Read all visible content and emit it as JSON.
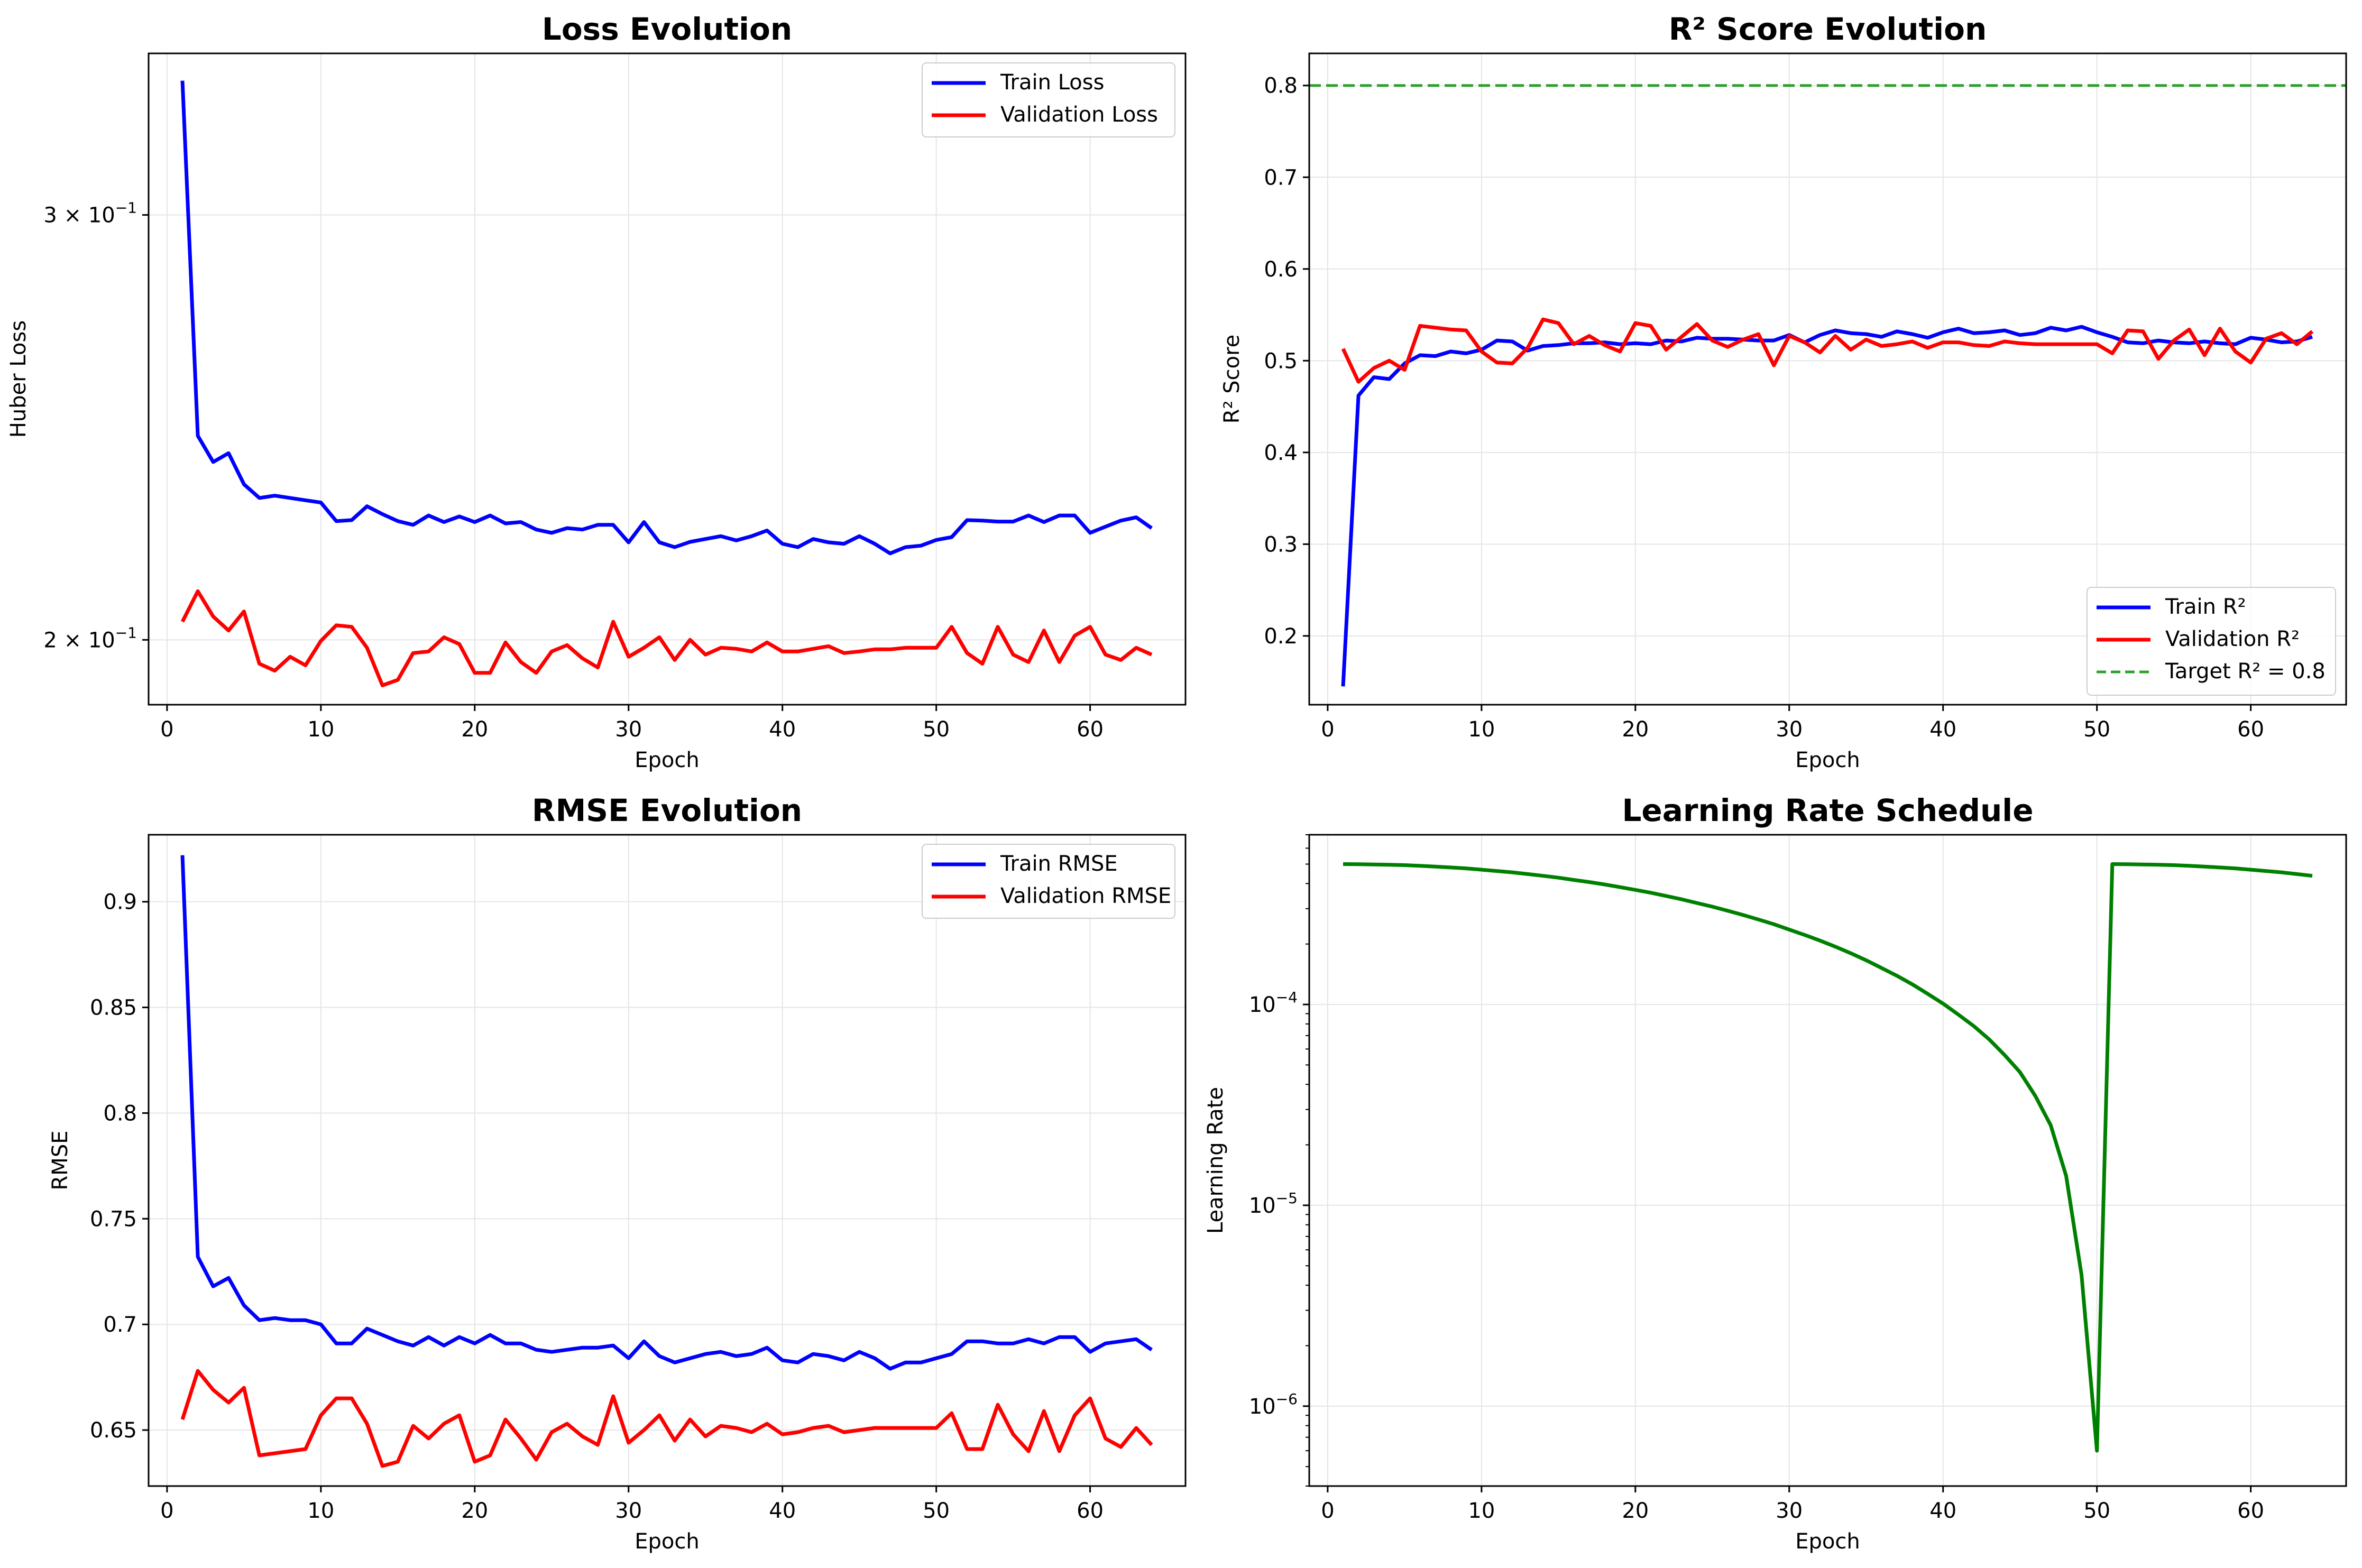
{
  "colors": {
    "train": "#0000ff",
    "validation": "#ff0000",
    "target": "#2ca02c",
    "lr": "#008000",
    "grid": "#e5e5e5",
    "legend_border": "#cccccc"
  },
  "chart_data": [
    {
      "type": "line",
      "title": "Loss Evolution",
      "xlabel": "Epoch",
      "ylabel": "Huber Loss",
      "yscale": "log",
      "xlim": [
        -1.2,
        66.2
      ],
      "ylim": [
        0.188,
        0.35
      ],
      "xticks": [
        0,
        10,
        20,
        30,
        40,
        50,
        60
      ],
      "yticks": [
        {
          "value": 0.3,
          "mantissa": "3",
          "exp": "−1"
        },
        {
          "value": 0.2,
          "mantissa": "2",
          "exp": "−1"
        }
      ],
      "grid": true,
      "legend_position": "top-right",
      "series": [
        {
          "name": "Train Loss",
          "color": "#0000ff",
          "x": [
            1,
            2,
            3,
            4,
            5,
            6,
            7,
            8,
            9,
            10,
            11,
            12,
            13,
            14,
            15,
            16,
            17,
            18,
            19,
            20,
            21,
            22,
            23,
            24,
            25,
            26,
            27,
            28,
            29,
            30,
            31,
            32,
            33,
            34,
            35,
            36,
            37,
            38,
            39,
            40,
            41,
            42,
            43,
            44,
            45,
            46,
            47,
            48,
            49,
            50,
            51,
            52,
            53,
            54,
            55,
            56,
            57,
            58,
            59,
            60,
            61,
            62,
            63,
            64
          ],
          "values": [
            0.341,
            0.243,
            0.237,
            0.239,
            0.232,
            0.229,
            0.2295,
            0.229,
            0.2285,
            0.228,
            0.224,
            0.2242,
            0.2272,
            0.2255,
            0.224,
            0.2232,
            0.2252,
            0.2238,
            0.225,
            0.2238,
            0.2252,
            0.2235,
            0.2238,
            0.2222,
            0.2215,
            0.2225,
            0.2222,
            0.2232,
            0.2232,
            0.2195,
            0.2238,
            0.2195,
            0.2185,
            0.2196,
            0.2202,
            0.2208,
            0.2199,
            0.2208,
            0.222,
            0.2192,
            0.2185,
            0.2202,
            0.2195,
            0.2192,
            0.2208,
            0.2192,
            0.2172,
            0.2185,
            0.2188,
            0.22,
            0.2206,
            0.2242,
            0.2241,
            0.2239,
            0.2239,
            0.2252,
            0.2238,
            0.2252,
            0.2252,
            0.2215,
            0.2228,
            0.2241,
            0.2248,
            0.2225
          ]
        },
        {
          "name": "Validation Loss",
          "color": "#ff0000",
          "x": [
            1,
            2,
            3,
            4,
            5,
            6,
            7,
            8,
            9,
            10,
            11,
            12,
            13,
            14,
            15,
            16,
            17,
            18,
            19,
            20,
            21,
            22,
            23,
            24,
            25,
            26,
            27,
            28,
            29,
            30,
            31,
            32,
            33,
            34,
            35,
            36,
            37,
            38,
            39,
            40,
            41,
            42,
            43,
            44,
            45,
            46,
            47,
            48,
            49,
            50,
            51,
            52,
            53,
            54,
            55,
            56,
            57,
            58,
            59,
            60,
            61,
            62,
            63,
            64
          ],
          "values": [
            0.2035,
            0.2095,
            0.2045,
            0.2018,
            0.2055,
            0.1955,
            0.1942,
            0.1968,
            0.1952,
            0.1998,
            0.2028,
            0.2025,
            0.1985,
            0.1915,
            0.1925,
            0.1975,
            0.1978,
            0.2005,
            0.1992,
            0.1938,
            0.1938,
            0.1995,
            0.1958,
            0.1938,
            0.1978,
            0.199,
            0.1965,
            0.1948,
            0.2035,
            0.1968,
            0.1985,
            0.2005,
            0.1962,
            0.2,
            0.1972,
            0.1985,
            0.1983,
            0.1978,
            0.1995,
            0.1978,
            0.1978,
            0.1983,
            0.1988,
            0.1975,
            0.1978,
            0.1982,
            0.1982,
            0.1985,
            0.1985,
            0.1985,
            0.2025,
            0.1975,
            0.1955,
            0.2025,
            0.1972,
            0.1958,
            0.2018,
            0.1958,
            0.2008,
            0.2025,
            0.1972,
            0.1962,
            0.1985,
            0.1972
          ]
        }
      ]
    },
    {
      "type": "line",
      "title": "R² Score Evolution",
      "xlabel": "Epoch",
      "ylabel": "R² Score",
      "yscale": "linear",
      "xlim": [
        -1.2,
        66.2
      ],
      "ylim": [
        0.125,
        0.835
      ],
      "xticks": [
        0,
        10,
        20,
        30,
        40,
        50,
        60
      ],
      "yticks": [
        0.2,
        0.3,
        0.4,
        0.5,
        0.6,
        0.7,
        0.8
      ],
      "grid": true,
      "legend_position": "bottom-right",
      "series": [
        {
          "name": "Train R²",
          "color": "#0000ff",
          "x": [
            1,
            2,
            3,
            4,
            5,
            6,
            7,
            8,
            9,
            10,
            11,
            12,
            13,
            14,
            15,
            16,
            17,
            18,
            19,
            20,
            21,
            22,
            23,
            24,
            25,
            26,
            27,
            28,
            29,
            30,
            31,
            32,
            33,
            34,
            35,
            36,
            37,
            38,
            39,
            40,
            41,
            42,
            43,
            44,
            45,
            46,
            47,
            48,
            49,
            50,
            51,
            52,
            53,
            54,
            55,
            56,
            57,
            58,
            59,
            60,
            61,
            62,
            63,
            64
          ],
          "values": [
            0.145,
            0.462,
            0.482,
            0.48,
            0.497,
            0.506,
            0.505,
            0.51,
            0.508,
            0.512,
            0.522,
            0.521,
            0.511,
            0.516,
            0.517,
            0.519,
            0.519,
            0.52,
            0.518,
            0.519,
            0.518,
            0.522,
            0.521,
            0.525,
            0.524,
            0.524,
            0.523,
            0.522,
            0.522,
            0.528,
            0.52,
            0.528,
            0.533,
            0.53,
            0.529,
            0.526,
            0.532,
            0.529,
            0.525,
            0.531,
            0.535,
            0.53,
            0.531,
            0.533,
            0.528,
            0.53,
            0.536,
            0.533,
            0.537,
            0.531,
            0.526,
            0.52,
            0.519,
            0.522,
            0.52,
            0.519,
            0.521,
            0.519,
            0.518,
            0.525,
            0.523,
            0.52,
            0.521,
            0.526
          ]
        },
        {
          "name": "Validation R²",
          "color": "#ff0000",
          "x": [
            1,
            2,
            3,
            4,
            5,
            6,
            7,
            8,
            9,
            10,
            11,
            12,
            13,
            14,
            15,
            16,
            17,
            18,
            19,
            20,
            21,
            22,
            23,
            24,
            25,
            26,
            27,
            28,
            29,
            30,
            31,
            32,
            33,
            34,
            35,
            36,
            37,
            38,
            39,
            40,
            41,
            42,
            43,
            44,
            45,
            46,
            47,
            48,
            49,
            50,
            51,
            52,
            53,
            54,
            55,
            56,
            57,
            58,
            59,
            60,
            61,
            62,
            63,
            64
          ],
          "values": [
            0.513,
            0.477,
            0.492,
            0.5,
            0.49,
            0.538,
            0.536,
            0.534,
            0.533,
            0.51,
            0.498,
            0.497,
            0.514,
            0.545,
            0.541,
            0.518,
            0.527,
            0.517,
            0.51,
            0.541,
            0.538,
            0.512,
            0.526,
            0.54,
            0.522,
            0.515,
            0.523,
            0.529,
            0.495,
            0.527,
            0.52,
            0.509,
            0.527,
            0.512,
            0.523,
            0.516,
            0.518,
            0.521,
            0.514,
            0.52,
            0.52,
            0.517,
            0.516,
            0.521,
            0.519,
            0.518,
            0.518,
            0.518,
            0.518,
            0.518,
            0.508,
            0.533,
            0.532,
            0.502,
            0.522,
            0.534,
            0.506,
            0.535,
            0.51,
            0.498,
            0.524,
            0.53,
            0.518,
            0.532
          ]
        }
      ],
      "reference_lines": [
        {
          "name": "Target R² = 0.8",
          "value": 0.8,
          "color": "#2ca02c",
          "style": "dashed"
        }
      ]
    },
    {
      "type": "line",
      "title": "RMSE Evolution",
      "xlabel": "Epoch",
      "ylabel": "RMSE",
      "yscale": "linear",
      "xlim": [
        -1.2,
        66.2
      ],
      "ylim": [
        0.6235,
        0.9317
      ],
      "xticks": [
        0,
        10,
        20,
        30,
        40,
        50,
        60
      ],
      "yticks": [
        0.65,
        0.7,
        0.75,
        0.8,
        0.85,
        0.9
      ],
      "grid": true,
      "legend_position": "top-right",
      "series": [
        {
          "name": "Train RMSE",
          "color": "#0000ff",
          "x": [
            1,
            2,
            3,
            4,
            5,
            6,
            7,
            8,
            9,
            10,
            11,
            12,
            13,
            14,
            15,
            16,
            17,
            18,
            19,
            20,
            21,
            22,
            23,
            24,
            25,
            26,
            27,
            28,
            29,
            30,
            31,
            32,
            33,
            34,
            35,
            36,
            37,
            38,
            39,
            40,
            41,
            42,
            43,
            44,
            45,
            46,
            47,
            48,
            49,
            50,
            51,
            52,
            53,
            54,
            55,
            56,
            57,
            58,
            59,
            60,
            61,
            62,
            63,
            64
          ],
          "values": [
            0.922,
            0.732,
            0.718,
            0.722,
            0.709,
            0.702,
            0.703,
            0.702,
            0.702,
            0.7,
            0.691,
            0.691,
            0.698,
            0.695,
            0.692,
            0.69,
            0.694,
            0.69,
            0.694,
            0.691,
            0.695,
            0.691,
            0.691,
            0.688,
            0.687,
            0.688,
            0.689,
            0.689,
            0.69,
            0.684,
            0.692,
            0.685,
            0.682,
            0.684,
            0.686,
            0.687,
            0.685,
            0.686,
            0.689,
            0.683,
            0.682,
            0.686,
            0.685,
            0.683,
            0.687,
            0.684,
            0.679,
            0.682,
            0.682,
            0.684,
            0.686,
            0.692,
            0.692,
            0.691,
            0.691,
            0.693,
            0.691,
            0.694,
            0.694,
            0.687,
            0.691,
            0.692,
            0.693,
            0.688
          ]
        },
        {
          "name": "Validation RMSE",
          "color": "#ff0000",
          "x": [
            1,
            2,
            3,
            4,
            5,
            6,
            7,
            8,
            9,
            10,
            11,
            12,
            13,
            14,
            15,
            16,
            17,
            18,
            19,
            20,
            21,
            22,
            23,
            24,
            25,
            26,
            27,
            28,
            29,
            30,
            31,
            32,
            33,
            34,
            35,
            36,
            37,
            38,
            39,
            40,
            41,
            42,
            43,
            44,
            45,
            46,
            47,
            48,
            49,
            50,
            51,
            52,
            53,
            54,
            55,
            56,
            57,
            58,
            59,
            60,
            61,
            62,
            63,
            64
          ],
          "values": [
            0.655,
            0.678,
            0.669,
            0.663,
            0.67,
            0.638,
            0.639,
            0.64,
            0.641,
            0.657,
            0.665,
            0.665,
            0.653,
            0.633,
            0.635,
            0.652,
            0.646,
            0.653,
            0.657,
            0.635,
            0.638,
            0.655,
            0.646,
            0.636,
            0.649,
            0.653,
            0.647,
            0.643,
            0.666,
            0.644,
            0.65,
            0.657,
            0.645,
            0.655,
            0.647,
            0.652,
            0.651,
            0.649,
            0.653,
            0.648,
            0.649,
            0.651,
            0.652,
            0.649,
            0.65,
            0.651,
            0.651,
            0.651,
            0.651,
            0.651,
            0.658,
            0.641,
            0.641,
            0.662,
            0.648,
            0.64,
            0.659,
            0.64,
            0.657,
            0.665,
            0.646,
            0.642,
            0.651,
            0.643
          ]
        }
      ]
    },
    {
      "type": "line",
      "title": "Learning Rate Schedule",
      "xlabel": "Epoch",
      "ylabel": "Learning Rate",
      "yscale": "log",
      "xlim": [
        -1.2,
        66.2
      ],
      "ylim": [
        4e-07,
        0.0007
      ],
      "xticks": [
        0,
        10,
        20,
        30,
        40,
        50,
        60
      ],
      "yticks": [
        {
          "value": 1e-06,
          "mantissa": "10",
          "exp": "−6"
        },
        {
          "value": 1e-05,
          "mantissa": "10",
          "exp": "−5"
        },
        {
          "value": 0.0001,
          "mantissa": "10",
          "exp": "−4"
        }
      ],
      "grid": true,
      "legend_position": "none",
      "series": [
        {
          "color": "#008000",
          "x": [
            1,
            2,
            3,
            4,
            5,
            6,
            7,
            8,
            9,
            10,
            11,
            12,
            13,
            14,
            15,
            16,
            17,
            18,
            19,
            20,
            21,
            22,
            23,
            24,
            25,
            26,
            27,
            28,
            29,
            30,
            31,
            32,
            33,
            34,
            35,
            36,
            37,
            38,
            39,
            40,
            41,
            42,
            43,
            44,
            45,
            46,
            47,
            48,
            49,
            50,
            51,
            52,
            53,
            54,
            55,
            56,
            57,
            58,
            59,
            60,
            61,
            62,
            63,
            64
          ],
          "values": [
            0.0005,
            0.000499,
            0.000498,
            0.000496,
            0.000494,
            0.00049,
            0.000486,
            0.000481,
            0.000476,
            0.000469,
            0.000462,
            0.000455,
            0.000446,
            0.000437,
            0.000428,
            0.000417,
            0.000407,
            0.000396,
            0.000384,
            0.000372,
            0.00036,
            0.000347,
            0.000334,
            0.00032,
            0.000307,
            0.000293,
            0.000279,
            0.000265,
            0.000251,
            0.000236,
            0.000222,
            0.000208,
            0.000194,
            0.00018,
            0.000166,
            0.000152,
            0.000139,
            0.000126,
            0.000113,
            0.000101,
            8.9e-05,
            7.8e-05,
            6.7e-05,
            5.6e-05,
            4.6e-05,
            3.5e-05,
            2.5e-05,
            1.4e-05,
            4.5e-06,
            6e-07,
            0.0005,
            0.000499,
            0.000498,
            0.000496,
            0.000494,
            0.00049,
            0.000486,
            0.000481,
            0.000476,
            0.000469,
            0.000462,
            0.000455,
            0.000446,
            0.000437
          ]
        }
      ]
    }
  ]
}
